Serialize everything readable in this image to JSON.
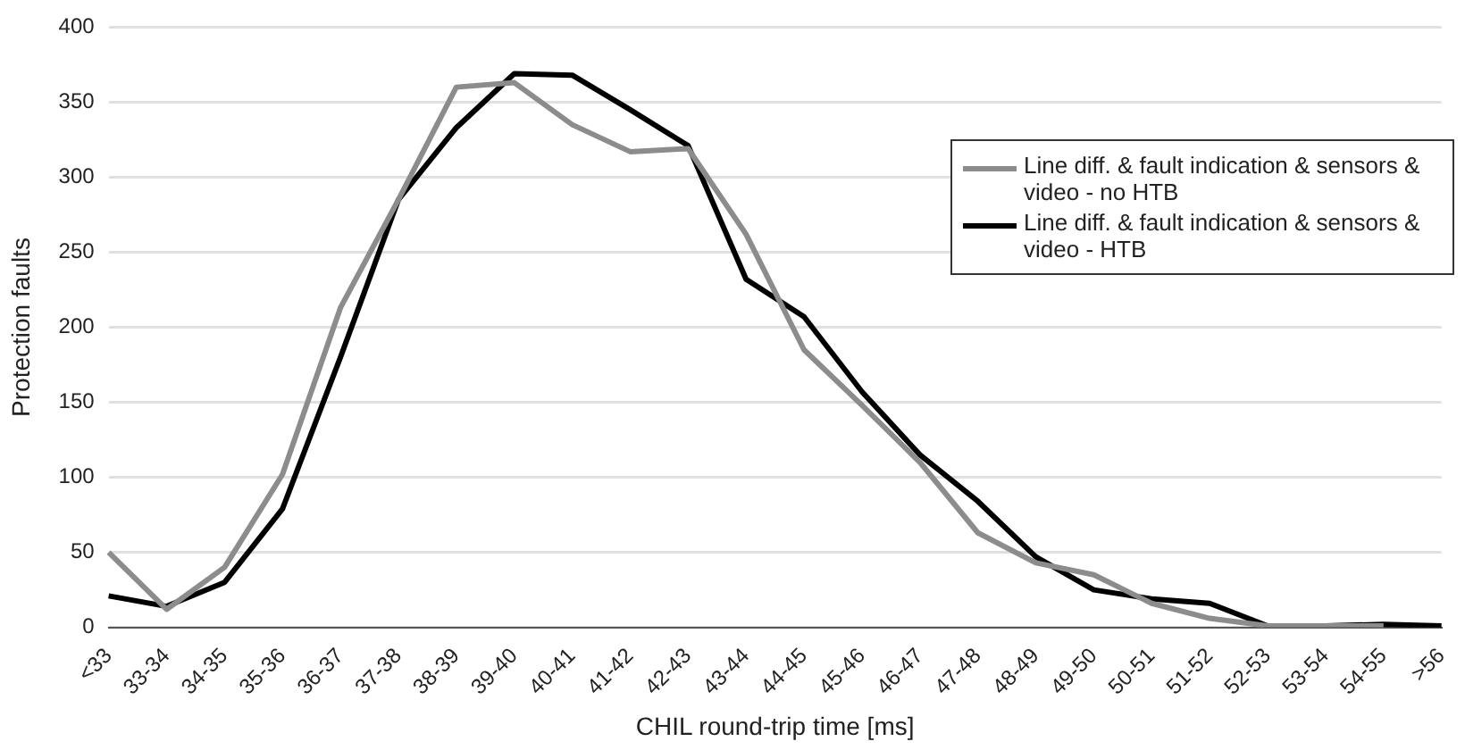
{
  "chart_data": {
    "type": "line",
    "xlabel": "CHIL round-trip time [ms]",
    "ylabel": "Protection faults",
    "categories": [
      "<33",
      "33-34",
      "34-35",
      "35-36",
      "36-37",
      "37-38",
      "38-39",
      "39-40",
      "40-41",
      "41-42",
      "42-43",
      "43-44",
      "44-45",
      "45-46",
      "46-47",
      "47-48",
      "48-49",
      "49-50",
      "50-51",
      "51-52",
      "52-53",
      "53-54",
      "54-55",
      ">56"
    ],
    "series": [
      {
        "name": "Line diff. & fault indication & sensors & video - no HTB",
        "color": "#8c8c8c",
        "values": [
          50,
          12,
          40,
          102,
          213,
          285,
          360,
          363,
          335,
          317,
          319,
          262,
          185,
          148,
          110,
          63,
          43,
          35,
          16,
          6,
          1,
          1,
          1,
          null
        ]
      },
      {
        "name": "Line diff. & fault indication & sensors & video - HTB",
        "color": "#000000",
        "values": [
          21,
          14,
          30,
          79,
          180,
          285,
          333,
          369,
          368,
          345,
          321,
          232,
          207,
          157,
          115,
          84,
          47,
          25,
          19,
          16,
          1,
          1,
          2,
          1
        ]
      }
    ],
    "ylim": [
      0,
      400
    ],
    "yticks": [
      0,
      50,
      100,
      150,
      200,
      250,
      300,
      350,
      400
    ],
    "grid": "y",
    "legend": "right",
    "marker": "none",
    "line_style": "solid"
  }
}
